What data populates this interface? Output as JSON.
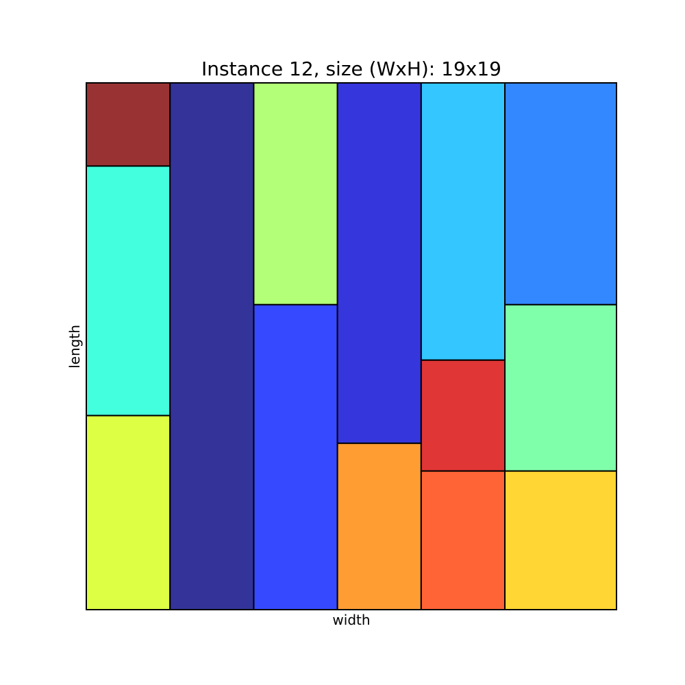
{
  "chart_data": {
    "type": "rectangle-packing",
    "title": "Instance 12, size (WxH): 19x19",
    "xlabel": "width",
    "ylabel": "length",
    "xlim": [
      0,
      19
    ],
    "ylim": [
      0,
      19
    ],
    "grid": false,
    "rectangles": [
      {
        "x": 0,
        "y": 16,
        "w": 3,
        "h": 3,
        "color": "#993333"
      },
      {
        "x": 0,
        "y": 7,
        "w": 3,
        "h": 9,
        "color": "#44ffdd"
      },
      {
        "x": 0,
        "y": 0,
        "w": 3,
        "h": 7,
        "color": "#ddff44"
      },
      {
        "x": 3,
        "y": 0,
        "w": 3,
        "h": 19,
        "color": "#333399"
      },
      {
        "x": 6,
        "y": 11,
        "w": 3,
        "h": 8,
        "color": "#b3ff77"
      },
      {
        "x": 6,
        "y": 0,
        "w": 3,
        "h": 11,
        "color": "#3649ff"
      },
      {
        "x": 9,
        "y": 6,
        "w": 3,
        "h": 13,
        "color": "#3636dd"
      },
      {
        "x": 9,
        "y": 0,
        "w": 3,
        "h": 6,
        "color": "#ff9d33"
      },
      {
        "x": 12,
        "y": 9,
        "w": 3,
        "h": 10,
        "color": "#33c6ff"
      },
      {
        "x": 12,
        "y": 5,
        "w": 3,
        "h": 4,
        "color": "#e03636"
      },
      {
        "x": 12,
        "y": 0,
        "w": 3,
        "h": 5,
        "color": "#ff6436"
      },
      {
        "x": 15,
        "y": 11,
        "w": 4,
        "h": 8,
        "color": "#3388ff"
      },
      {
        "x": 15,
        "y": 5,
        "w": 4,
        "h": 6,
        "color": "#80ffaa"
      },
      {
        "x": 15,
        "y": 0,
        "w": 4,
        "h": 5,
        "color": "#ffd633"
      }
    ]
  }
}
